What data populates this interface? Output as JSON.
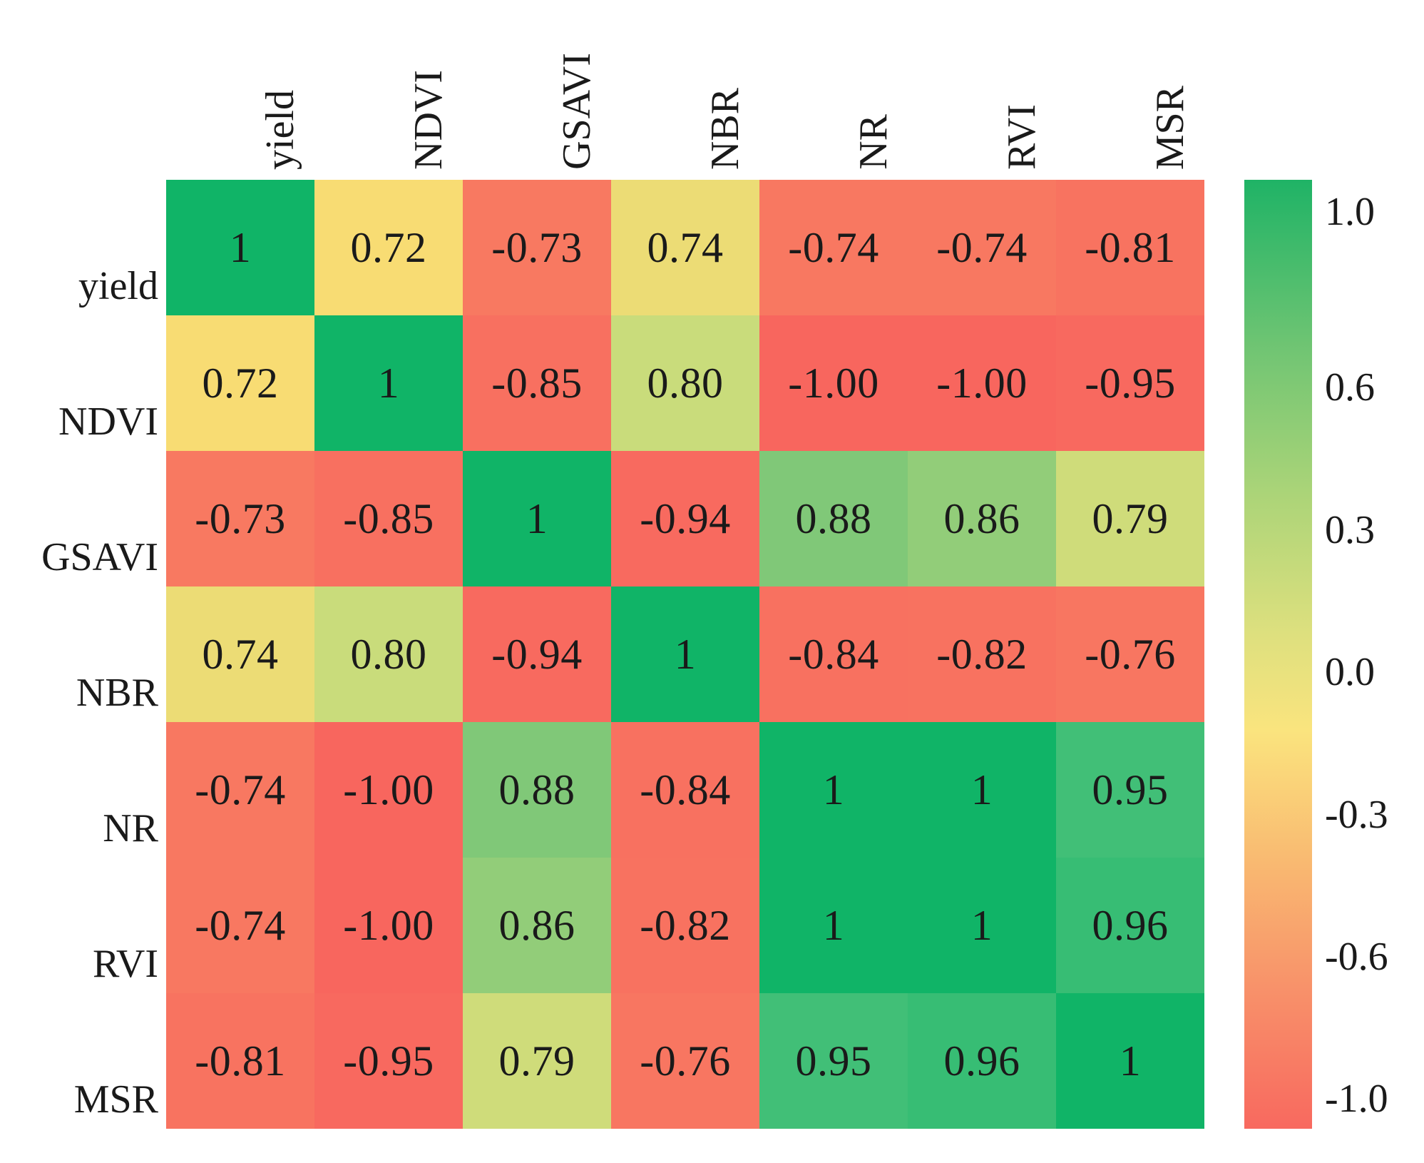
{
  "chart_data": {
    "type": "heatmap",
    "subtype": "correlation-matrix",
    "variables": [
      "yield",
      "NDVI",
      "GSAVI",
      "NBR",
      "NR",
      "RVI",
      "MSR"
    ],
    "matrix": [
      [
        1.0,
        0.72,
        -0.73,
        0.74,
        -0.74,
        -0.74,
        -0.81
      ],
      [
        0.72,
        1.0,
        -0.85,
        0.8,
        -1.0,
        -1.0,
        -0.95
      ],
      [
        -0.73,
        -0.85,
        1.0,
        -0.94,
        0.88,
        0.86,
        0.79
      ],
      [
        0.74,
        0.8,
        -0.94,
        1.0,
        -0.84,
        -0.82,
        -0.76
      ],
      [
        -0.74,
        -1.0,
        0.88,
        -0.84,
        1.0,
        1.0,
        0.95
      ],
      [
        -0.74,
        -1.0,
        0.86,
        -0.82,
        1.0,
        1.0,
        0.96
      ],
      [
        -0.81,
        -0.95,
        0.79,
        -0.76,
        0.95,
        0.96,
        1.0
      ]
    ],
    "cell_labels": [
      [
        "1",
        "0.72",
        "-0.73",
        "0.74",
        "-0.74",
        "-0.74",
        "-0.81"
      ],
      [
        "0.72",
        "1",
        "-0.85",
        "0.80",
        "-1.00",
        "-1.00",
        "-0.95"
      ],
      [
        "-0.73",
        "-0.85",
        "1",
        "-0.94",
        "0.88",
        "0.86",
        "0.79"
      ],
      [
        "0.74",
        "0.80",
        "-0.94",
        "1",
        "-0.84",
        "-0.82",
        "-0.76"
      ],
      [
        "-0.74",
        "-1.00",
        "0.88",
        "-0.84",
        "1",
        "1",
        "0.95"
      ],
      [
        "-0.74",
        "-1.00",
        "0.86",
        "-0.82",
        "1",
        "1",
        "0.96"
      ],
      [
        "-0.81",
        "-0.95",
        "0.79",
        "-0.76",
        "0.95",
        "0.96",
        "1"
      ]
    ],
    "value_range": [
      -1,
      1
    ],
    "colormap_anchors": [
      {
        "value": -1.0,
        "color": "#F8665E"
      },
      {
        "value": 0.72,
        "color": "#F8DC73"
      },
      {
        "value": 0.8,
        "color": "#C9DC7B"
      },
      {
        "value": 0.88,
        "color": "#80C878"
      },
      {
        "value": 0.95,
        "color": "#41BF77"
      },
      {
        "value": 1.0,
        "color": "#10B467"
      }
    ],
    "colorbar": {
      "position": "right",
      "ticks": [
        "1.0",
        "0.6",
        "0.3",
        "0.0",
        "-0.3",
        "-0.6",
        "-1.0"
      ],
      "tick_values": [
        1.0,
        0.6,
        0.3,
        0.0,
        -0.3,
        -0.6,
        -1.0
      ],
      "gradient_stops": [
        {
          "pos": 0,
          "color": "#1FB366"
        },
        {
          "pos": 18,
          "color": "#71C573"
        },
        {
          "pos": 33,
          "color": "#ABD478"
        },
        {
          "pos": 48,
          "color": "#DEE07E"
        },
        {
          "pos": 58,
          "color": "#FAE47E"
        },
        {
          "pos": 72,
          "color": "#F9B971"
        },
        {
          "pos": 85,
          "color": "#F8926A"
        },
        {
          "pos": 100,
          "color": "#F8695F"
        }
      ]
    },
    "grid_lines": false,
    "text_color": "#1A1A1A",
    "background_color": "#FFFFFF"
  }
}
